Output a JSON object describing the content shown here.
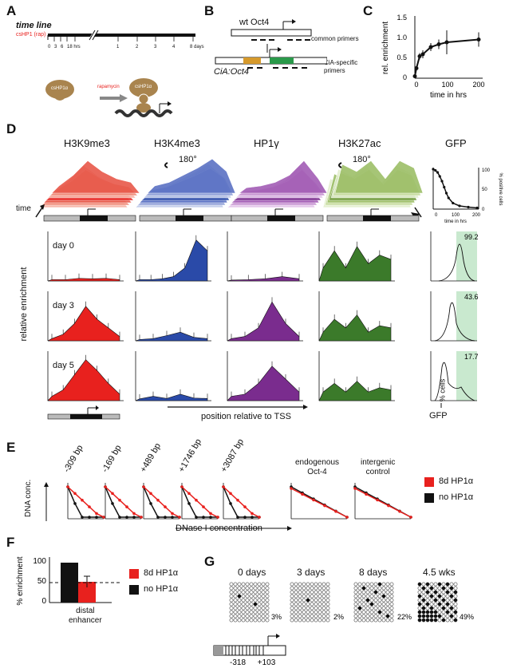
{
  "colors": {
    "red": "#e8211e",
    "blue": "#2a4aa8",
    "purple": "#7a2c8e",
    "green": "#3b7a2a",
    "black": "#111111",
    "green_light": "#c9e9cf"
  },
  "panelA": {
    "letter": "A",
    "title": "time line",
    "sub": "csHP1 (rap)",
    "ticks": [
      "0",
      "3",
      "6",
      "18 hrs",
      "1",
      "2",
      "3",
      "4",
      "5",
      "8 days"
    ],
    "cshp1": "csHP1α",
    "rapamycin": "rapamycin"
  },
  "panelB": {
    "letter": "B",
    "wt": "wt Oct4",
    "common": "common primers",
    "cia": "CiA:Oct4",
    "specific": "CiA-specific\nprimers"
  },
  "panelC": {
    "letter": "C",
    "ylabel": "rel. enrichment",
    "xlabel": "time in hrs",
    "yticks": [
      "0",
      "0.5",
      "1.0",
      "1.5"
    ],
    "xticks": [
      "0",
      "100",
      "200"
    ]
  },
  "panelD": {
    "letter": "D",
    "marks": [
      "H3K9me3",
      "H3K4me3",
      "HP1γ",
      "H3K27ac",
      "GFP"
    ],
    "rot": "180°",
    "time": "time",
    "ylabel": "relative enrichment",
    "days": [
      "day 0",
      "day 3",
      "day 5"
    ],
    "xlabel": "position relative to TSS",
    "gfp_vals": [
      "99.2",
      "43.6",
      "17.7"
    ],
    "gfp_y": "% cells",
    "gfp_x": "GFP",
    "gfp_inset_y": "% positive cells",
    "gfp_inset_x": "time in hrs",
    "inset_yticks": [
      "100",
      "50",
      "0"
    ],
    "inset_xticks": [
      "0",
      "100",
      "200"
    ],
    "xt1": [
      "-10000",
      "-2000",
      "0",
      "2000",
      "4000",
      "6000"
    ],
    "xt2": [
      "-10000",
      "-2000",
      "0",
      "2000",
      "4000"
    ],
    "xt3": [
      "-10000",
      "-2000",
      "0",
      "2000"
    ],
    "xt4": [
      "-10000",
      "-2000",
      "0",
      "2000"
    ]
  },
  "panelE": {
    "letter": "E",
    "positions": [
      "-309 bp",
      "-169 bp",
      "+489 bp",
      "+1746 bp",
      "+3087 bp"
    ],
    "ylabel": "DNA conc.",
    "xlabel": "DNase I concentration",
    "endog": "endogenous\nOct-4",
    "interg": "intergenic\ncontrol",
    "legend": [
      "8d HP1α",
      "no HP1α"
    ]
  },
  "panelF": {
    "letter": "F",
    "ylabel": "% enrichment",
    "yticks": [
      "100",
      "50",
      "0"
    ],
    "xlabel": "distal\nenhancer",
    "legend": [
      "8d HP1α",
      "no HP1α"
    ],
    "chart_data": {
      "type": "bar",
      "categories": [
        "distal enhancer"
      ],
      "series": [
        {
          "name": "no HP1α",
          "values": [
            100
          ]
        },
        {
          "name": "8d HP1α",
          "values": [
            52
          ]
        }
      ],
      "ylim": [
        0,
        110
      ]
    }
  },
  "panelG": {
    "letter": "G",
    "labels": [
      "0 days",
      "3 days",
      "8 days",
      "4.5 wks"
    ],
    "pct": [
      "3%",
      "2%",
      "22%",
      "49%"
    ],
    "pos": [
      "-318",
      "+103"
    ]
  },
  "chart_data": {
    "type": "line",
    "title": "",
    "xlabel": "time in hrs",
    "ylabel": "rel. enrichment",
    "x": [
      0,
      5,
      15,
      25,
      50,
      75,
      100,
      200
    ],
    "values": [
      0.05,
      0.25,
      0.55,
      0.6,
      0.78,
      0.85,
      0.9,
      0.97
    ],
    "ylim": [
      0,
      1.5
    ]
  }
}
